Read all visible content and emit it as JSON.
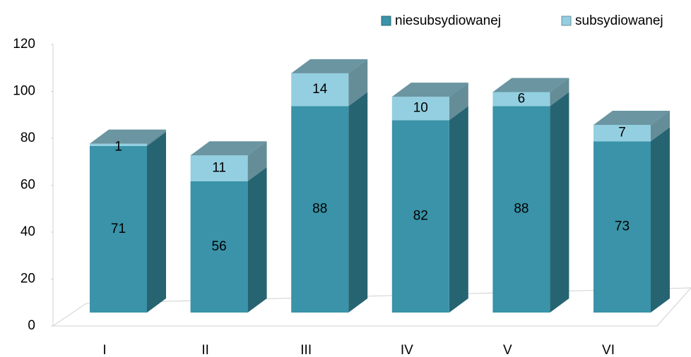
{
  "chart_data": {
    "type": "bar3d_stacked",
    "categories": [
      "I",
      "II",
      "III",
      "IV",
      "V",
      "VI"
    ],
    "series": [
      {
        "name": "niesubsydiowanej",
        "color": "#3a93a8",
        "values": [
          71,
          56,
          88,
          82,
          88,
          73
        ]
      },
      {
        "name": "subsydiowanej",
        "color": "#93cfe0",
        "values": [
          1,
          11,
          14,
          10,
          6,
          7
        ]
      }
    ],
    "ylim": [
      0,
      120
    ],
    "yticks": [
      0,
      20,
      40,
      60,
      80,
      100,
      120
    ],
    "legend": "top-right",
    "grid": false
  }
}
